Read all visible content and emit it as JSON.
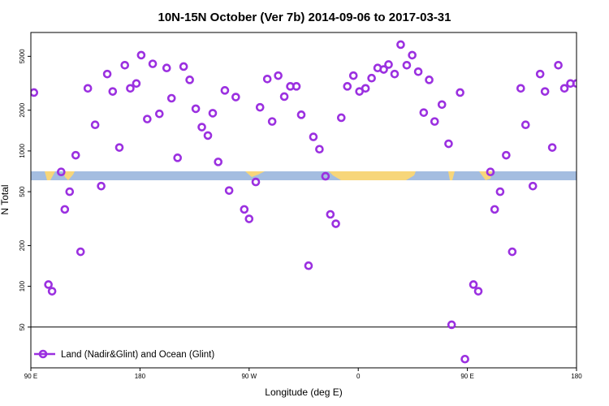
{
  "chart_data": {
    "type": "scatter",
    "title": "10N-15N October (Ver 7b)   2014-09-06 to 2017-03-31",
    "xlabel": "Longitude (deg E)",
    "ylabel": "N Total",
    "x_scale": "linear",
    "y_scale": "log",
    "xlim": [
      90,
      540
    ],
    "ylim": [
      25,
      7500
    ],
    "x_ticks": [
      {
        "value": 90,
        "label": "90 E"
      },
      {
        "value": 180,
        "label": "180"
      },
      {
        "value": 270,
        "label": "90 W"
      },
      {
        "value": 360,
        "label": "0"
      },
      {
        "value": 450,
        "label": "90 E"
      },
      {
        "value": 540,
        "label": "180"
      }
    ],
    "y_ticks": [
      {
        "value": 50,
        "label": "50"
      },
      {
        "value": 100,
        "label": "100"
      },
      {
        "value": 200,
        "label": "200"
      },
      {
        "value": 500,
        "label": "500"
      },
      {
        "value": 1000,
        "label": "1000"
      },
      {
        "value": 2000,
        "label": "2000"
      },
      {
        "value": 5000,
        "label": "5000"
      }
    ],
    "reference_line": 50,
    "grid": false,
    "legend_position": "bottom-left",
    "band": {
      "y_range": [
        560,
        660
      ],
      "ocean_color": "#a4bde0",
      "land_color": "#f7d67a"
    },
    "series": [
      {
        "name": "Land (Nadir&Glint) and Ocean (Glint)",
        "color": "#9b30e0",
        "marker": "open-circle",
        "points": [
          [
            92.5,
            2700
          ],
          [
            104.5,
            103
          ],
          [
            107.5,
            92
          ],
          [
            115,
            700
          ],
          [
            118,
            370
          ],
          [
            122,
            500
          ],
          [
            127,
            930
          ],
          [
            131,
            180
          ],
          [
            137,
            2900
          ],
          [
            143,
            1560
          ],
          [
            148,
            550
          ],
          [
            153,
            3700
          ],
          [
            157.5,
            2750
          ],
          [
            163,
            1060
          ],
          [
            167.5,
            4300
          ],
          [
            172,
            2900
          ],
          [
            177,
            3150
          ],
          [
            181,
            5100
          ],
          [
            186,
            1720
          ],
          [
            190.5,
            4400
          ],
          [
            196,
            1880
          ],
          [
            202,
            4100
          ],
          [
            206,
            2450
          ],
          [
            211,
            890
          ],
          [
            216,
            4200
          ],
          [
            221,
            3350
          ],
          [
            226,
            2050
          ],
          [
            231,
            1500
          ],
          [
            236,
            1300
          ],
          [
            240,
            1900
          ],
          [
            244.5,
            830
          ],
          [
            250,
            2800
          ],
          [
            253.5,
            510
          ],
          [
            259,
            2500
          ],
          [
            266,
            370
          ],
          [
            270,
            315
          ],
          [
            275.5,
            590
          ],
          [
            279,
            2100
          ],
          [
            285,
            3400
          ],
          [
            289,
            1650
          ],
          [
            294,
            3600
          ],
          [
            299,
            2520
          ],
          [
            304,
            3000
          ],
          [
            309,
            3000
          ],
          [
            313,
            1850
          ],
          [
            319,
            142
          ],
          [
            323,
            1270
          ],
          [
            328,
            1030
          ],
          [
            333,
            650
          ],
          [
            337,
            340
          ],
          [
            341.5,
            290
          ],
          [
            346,
            1760
          ],
          [
            351,
            3000
          ],
          [
            356,
            3600
          ],
          [
            361,
            2750
          ],
          [
            366,
            2900
          ],
          [
            371,
            3450
          ],
          [
            376,
            4100
          ],
          [
            381,
            4000
          ],
          [
            385,
            4350
          ],
          [
            390,
            3700
          ],
          [
            395,
            6100
          ],
          [
            400,
            4300
          ],
          [
            404.5,
            5100
          ],
          [
            409.5,
            3850
          ],
          [
            414,
            1920
          ],
          [
            418.5,
            3350
          ],
          [
            423,
            1650
          ],
          [
            429,
            2200
          ],
          [
            434.5,
            1130
          ],
          [
            437,
            52
          ],
          [
            444,
            2700
          ],
          [
            448,
            29
          ],
          [
            455,
            103
          ],
          [
            459,
            92
          ],
          [
            469,
            700
          ],
          [
            472.5,
            370
          ],
          [
            477,
            500
          ],
          [
            482,
            930
          ],
          [
            487,
            180
          ],
          [
            494,
            2900
          ],
          [
            498,
            1560
          ],
          [
            504,
            550
          ],
          [
            510,
            3700
          ],
          [
            514,
            2750
          ],
          [
            520,
            1060
          ],
          [
            525,
            4300
          ],
          [
            530,
            2900
          ],
          [
            535,
            3150
          ],
          [
            540,
            3150
          ]
        ]
      }
    ]
  }
}
